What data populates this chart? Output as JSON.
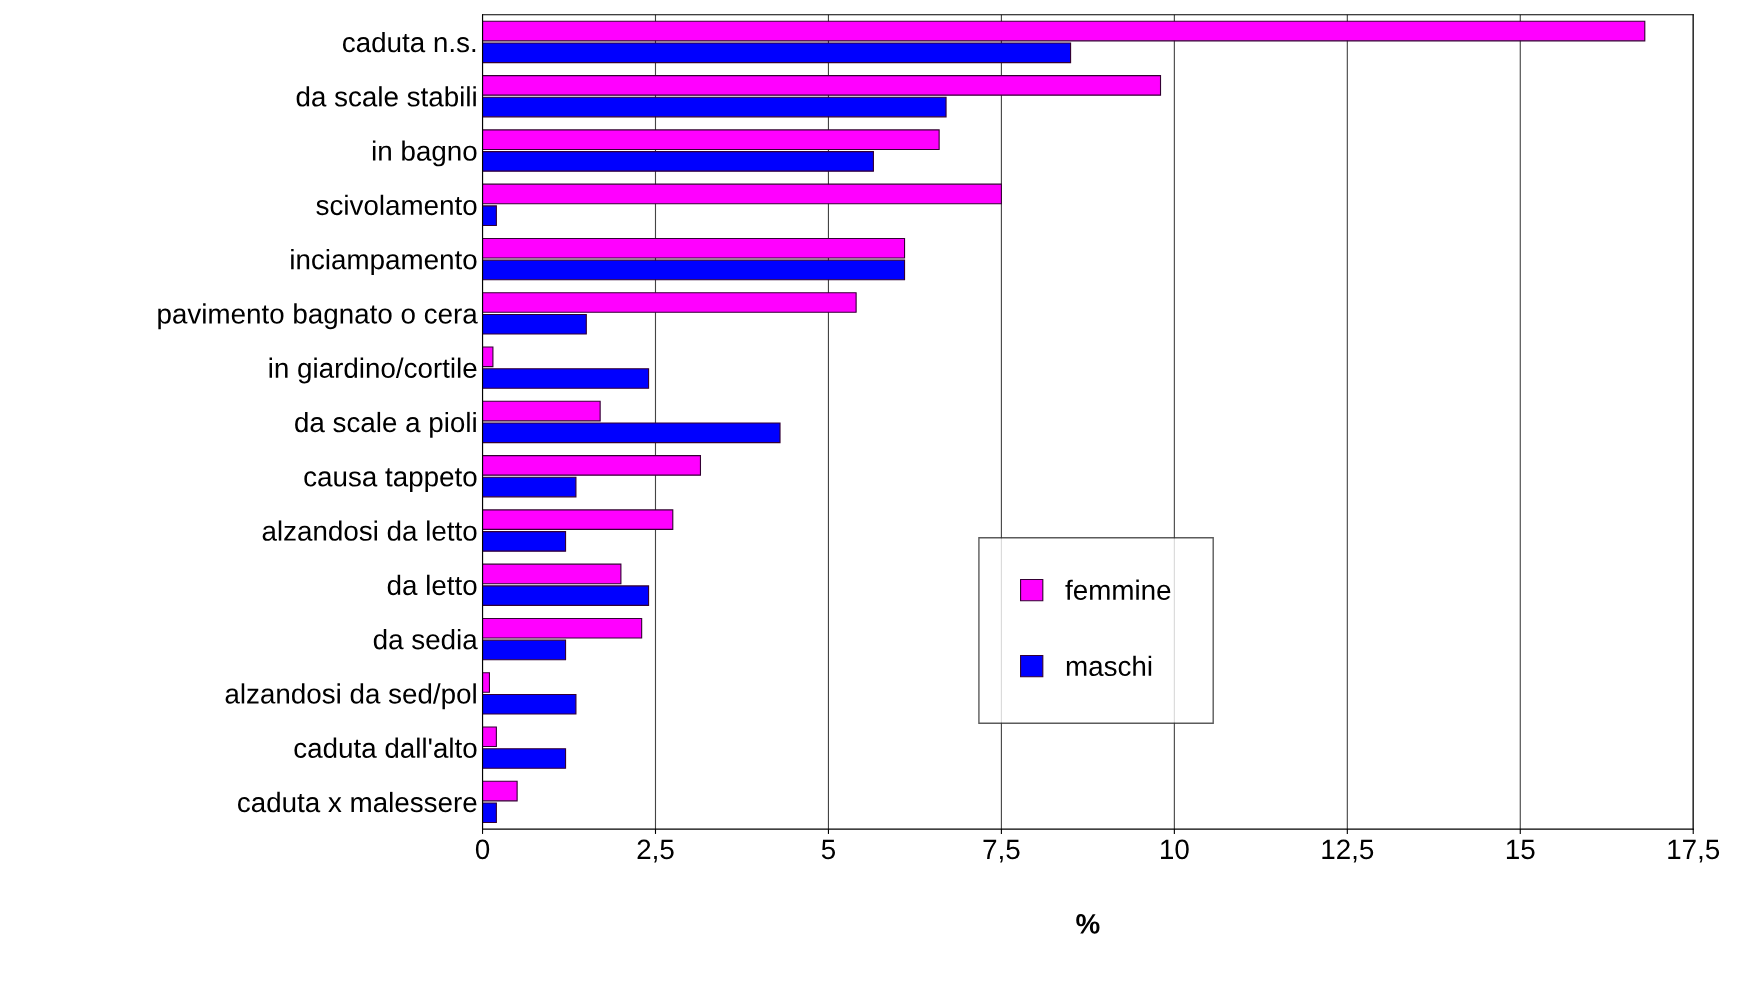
{
  "chart_data": {
    "type": "bar",
    "orientation": "horizontal",
    "xlabel": "%",
    "categories": [
      "caduta n.s.",
      "da scale stabili",
      "in bagno",
      "scivolamento",
      "inciampamento",
      "pavimento bagnato o cera",
      "in giardino/cortile",
      "da scale a pioli",
      "causa tappeto",
      "alzandosi da letto",
      "da letto",
      "da sedia",
      "alzandosi da sed/pol",
      "caduta dall'alto",
      "caduta x malessere"
    ],
    "series": [
      {
        "name": "femmine",
        "color": "#ff00ff",
        "values": [
          16.8,
          9.8,
          6.6,
          7.5,
          6.1,
          5.4,
          0.15,
          1.7,
          3.15,
          2.75,
          2.0,
          2.3,
          0.1,
          0.2,
          0.5
        ]
      },
      {
        "name": "maschi",
        "color": "#0000ff",
        "values": [
          8.5,
          6.7,
          5.65,
          0.2,
          6.1,
          1.5,
          2.4,
          4.3,
          1.35,
          1.2,
          2.4,
          1.2,
          1.35,
          1.2,
          0.2
        ]
      }
    ],
    "xlim": [
      0,
      17.5
    ],
    "xticks": [
      0,
      {
        "value": 2.5,
        "label": "2,5"
      },
      5,
      {
        "value": 7.5,
        "label": "7,5"
      },
      10,
      {
        "value": 12.5,
        "label": "12,5"
      },
      15,
      {
        "value": 17.5,
        "label": "17,5"
      }
    ],
    "grid": "x",
    "legend": "bottom right"
  }
}
